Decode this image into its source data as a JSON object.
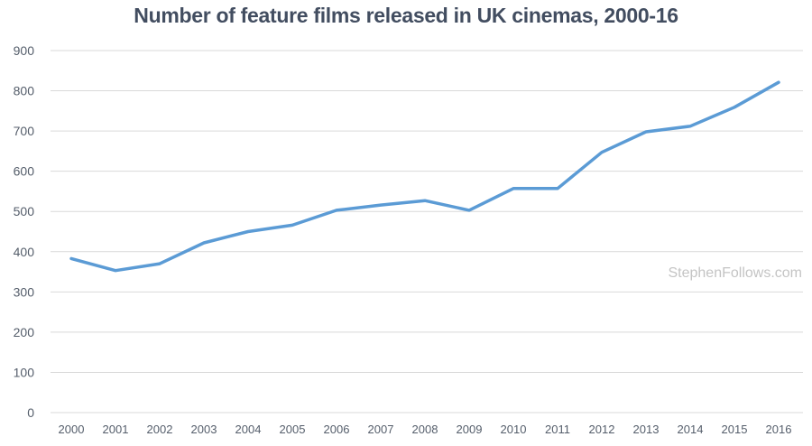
{
  "chart_data": {
    "type": "line",
    "title": "Number of feature films released in UK cinemas, 2000-16",
    "xlabel": "",
    "ylabel": "",
    "categories": [
      "2000",
      "2001",
      "2002",
      "2003",
      "2004",
      "2005",
      "2006",
      "2007",
      "2008",
      "2009",
      "2010",
      "2011",
      "2012",
      "2013",
      "2014",
      "2015",
      "2016"
    ],
    "series": [
      {
        "name": "Feature films released",
        "values": [
          383,
          353,
          370,
          422,
          450,
          466,
          503,
          516,
          527,
          503,
          557,
          557,
          647,
          698,
          712,
          759,
          821
        ],
        "color": "#5b9bd5"
      }
    ],
    "ylim": [
      0,
      900
    ],
    "yticks": [
      0,
      100,
      200,
      300,
      400,
      500,
      600,
      700,
      800,
      900
    ],
    "grid": true,
    "legend": "none",
    "annotations": [
      "StephenFollows.com"
    ]
  },
  "title": "Number of feature films released in UK cinemas, 2000-16",
  "watermark": "StephenFollows.com",
  "colors": {
    "line": "#5b9bd5",
    "title": "#424d60",
    "grid": "#d9d9d9",
    "ticks": "#555e6b",
    "watermark": "#c4c4c4"
  }
}
